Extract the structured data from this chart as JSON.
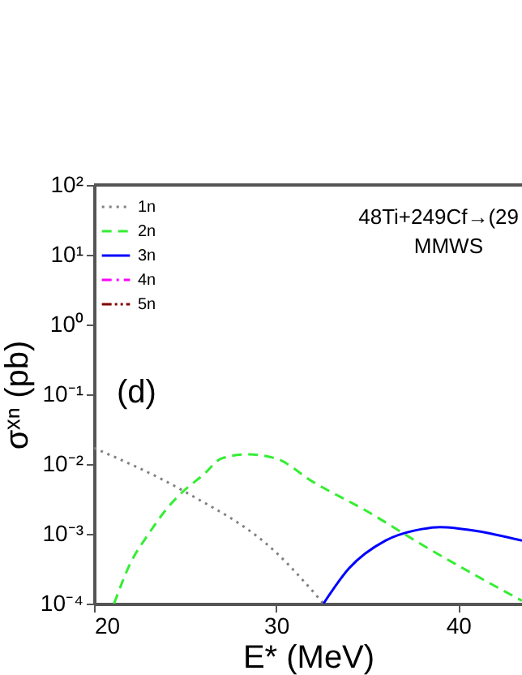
{
  "chart_data": {
    "type": "line",
    "xlabel": "E* (MeV)",
    "ylabel": "σˣⁿ (pb)",
    "annotations": [
      "48Ti+249Cf→(29",
      "MMWS",
      "(d)"
    ],
    "xlim": [
      20,
      43.5
    ],
    "xticks": [
      20,
      30,
      40
    ],
    "ylim": [
      0.0001,
      100
    ],
    "log": true,
    "yticks": [
      {
        "value": 0.0001,
        "label": "10⁻⁴"
      },
      {
        "value": 0.001,
        "label": "10⁻³"
      },
      {
        "value": 0.01,
        "label": "10⁻²"
      },
      {
        "value": 0.1,
        "label": "10⁻¹"
      },
      {
        "value": 1,
        "label": "10⁰"
      },
      {
        "value": 10,
        "label": "10¹"
      },
      {
        "value": 100,
        "label": "10²"
      }
    ],
    "grid": false,
    "legend": "top left",
    "series": [
      {
        "name": "1n",
        "color": "#808080",
        "line_style": "dotted",
        "x": [
          20,
          25,
          30,
          32.6
        ],
        "values": [
          0.017,
          0.004,
          0.00054,
          0.0001
        ]
      },
      {
        "name": "2n",
        "color": "#33ee33",
        "line_style": "dashed",
        "x": [
          21.1,
          22,
          23,
          24,
          25,
          26,
          27,
          28.4,
          30,
          32,
          35,
          38,
          41,
          43.5
        ],
        "values": [
          0.0001,
          0.00038,
          0.001,
          0.0023,
          0.0043,
          0.007,
          0.012,
          0.0138,
          0.012,
          0.0056,
          0.0021,
          0.0007,
          0.00025,
          0.00011
        ]
      },
      {
        "name": "3n",
        "color": "#0000ff",
        "line_style": "solid",
        "x": [
          32.6,
          34,
          36,
          38,
          39,
          41,
          43.5
        ],
        "values": [
          0.0001,
          0.00032,
          0.0008,
          0.00117,
          0.00125,
          0.0011,
          0.0008
        ]
      },
      {
        "name": "4n",
        "color": "#ff00ff",
        "line_style": "dashdot"
      },
      {
        "name": "5n",
        "color": "#800000",
        "line_style": "dashdotdot"
      }
    ]
  }
}
